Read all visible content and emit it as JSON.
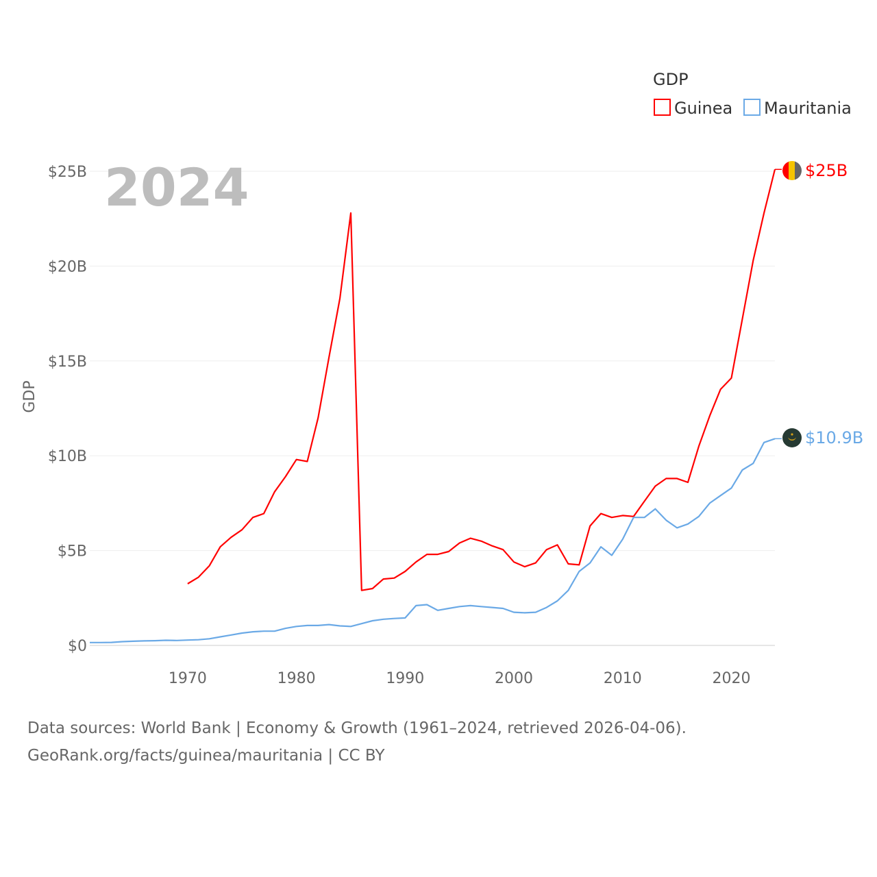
{
  "year_label": "2024",
  "legend": {
    "title": "GDP",
    "items": [
      {
        "name": "Guinea",
        "color": "#ff0000"
      },
      {
        "name": "Mauritania",
        "color": "#6aa9e6"
      }
    ]
  },
  "end_labels": {
    "guinea": "$25B",
    "mauritania": "$10.9B"
  },
  "source": {
    "line1": "Data sources: World Bank | Economy & Growth (1961–2024, retrieved 2026-04-06).",
    "line2": "GeoRank.org/facts/guinea/mauritania | CC BY"
  },
  "chart_data": {
    "type": "line",
    "title": "GDP",
    "xlabel": "",
    "ylabel": "GDP",
    "xlim": [
      1961,
      2024
    ],
    "ylim": [
      0,
      25
    ],
    "y_ticks": [
      {
        "value": 0,
        "label": "$0"
      },
      {
        "value": 5,
        "label": "$5B"
      },
      {
        "value": 10,
        "label": "$10B"
      },
      {
        "value": 15,
        "label": "$15B"
      },
      {
        "value": 20,
        "label": "$20B"
      },
      {
        "value": 25,
        "label": "$25B"
      }
    ],
    "x_ticks": [
      {
        "value": 1970,
        "label": "1970"
      },
      {
        "value": 1980,
        "label": "1980"
      },
      {
        "value": 1990,
        "label": "1990"
      },
      {
        "value": 2000,
        "label": "2000"
      },
      {
        "value": 2010,
        "label": "2010"
      },
      {
        "value": 2020,
        "label": "2020"
      }
    ],
    "grid": true,
    "legend_position": "top-right",
    "units": "billions USD",
    "series": [
      {
        "name": "Guinea",
        "color": "#ff0000",
        "x": [
          1970,
          1971,
          1972,
          1973,
          1974,
          1975,
          1976,
          1977,
          1978,
          1979,
          1980,
          1981,
          1982,
          1983,
          1984,
          1985,
          1986,
          1987,
          1988,
          1989,
          1990,
          1991,
          1992,
          1993,
          1994,
          1995,
          1996,
          1997,
          1998,
          1999,
          2000,
          2001,
          2002,
          2003,
          2004,
          2005,
          2006,
          2007,
          2008,
          2009,
          2010,
          2011,
          2012,
          2013,
          2014,
          2015,
          2016,
          2017,
          2018,
          2019,
          2020,
          2021,
          2022,
          2023,
          2024
        ],
        "values": [
          3.25,
          3.6,
          4.2,
          5.2,
          5.7,
          6.1,
          6.75,
          6.95,
          8.1,
          8.9,
          9.8,
          9.7,
          12.0,
          15.2,
          18.3,
          22.8,
          2.9,
          3.0,
          3.5,
          3.55,
          3.9,
          4.4,
          4.8,
          4.8,
          4.95,
          5.4,
          5.65,
          5.5,
          5.25,
          5.05,
          4.4,
          4.15,
          4.35,
          5.05,
          5.3,
          4.3,
          4.25,
          6.3,
          6.95,
          6.75,
          6.85,
          6.8,
          7.6,
          8.4,
          8.8,
          8.8,
          8.6,
          10.5,
          12.1,
          13.5,
          14.1,
          17.2,
          20.3,
          22.8,
          25.1
        ]
      },
      {
        "name": "Mauritania",
        "color": "#6aa9e6",
        "x": [
          1961,
          1962,
          1963,
          1964,
          1965,
          1966,
          1967,
          1968,
          1969,
          1970,
          1971,
          1972,
          1973,
          1974,
          1975,
          1976,
          1977,
          1978,
          1979,
          1980,
          1981,
          1982,
          1983,
          1984,
          1985,
          1986,
          1987,
          1988,
          1989,
          1990,
          1991,
          1992,
          1993,
          1994,
          1995,
          1996,
          1997,
          1998,
          1999,
          2000,
          2001,
          2002,
          2003,
          2004,
          2005,
          2006,
          2007,
          2008,
          2009,
          2010,
          2011,
          2012,
          2013,
          2014,
          2015,
          2016,
          2017,
          2018,
          2019,
          2020,
          2021,
          2022,
          2023,
          2024
        ],
        "values": [
          0.15,
          0.15,
          0.16,
          0.2,
          0.22,
          0.24,
          0.25,
          0.27,
          0.26,
          0.28,
          0.3,
          0.35,
          0.45,
          0.55,
          0.65,
          0.72,
          0.75,
          0.75,
          0.9,
          1.0,
          1.05,
          1.05,
          1.1,
          1.03,
          1.0,
          1.15,
          1.3,
          1.38,
          1.42,
          1.45,
          2.1,
          2.15,
          1.85,
          1.95,
          2.05,
          2.1,
          2.05,
          2.0,
          1.95,
          1.75,
          1.72,
          1.75,
          2.0,
          2.35,
          2.9,
          3.9,
          4.35,
          5.2,
          4.75,
          5.6,
          6.75,
          6.75,
          7.2,
          6.6,
          6.2,
          6.4,
          6.8,
          7.5,
          7.9,
          8.3,
          9.25,
          9.6,
          10.7,
          10.9
        ]
      }
    ]
  }
}
